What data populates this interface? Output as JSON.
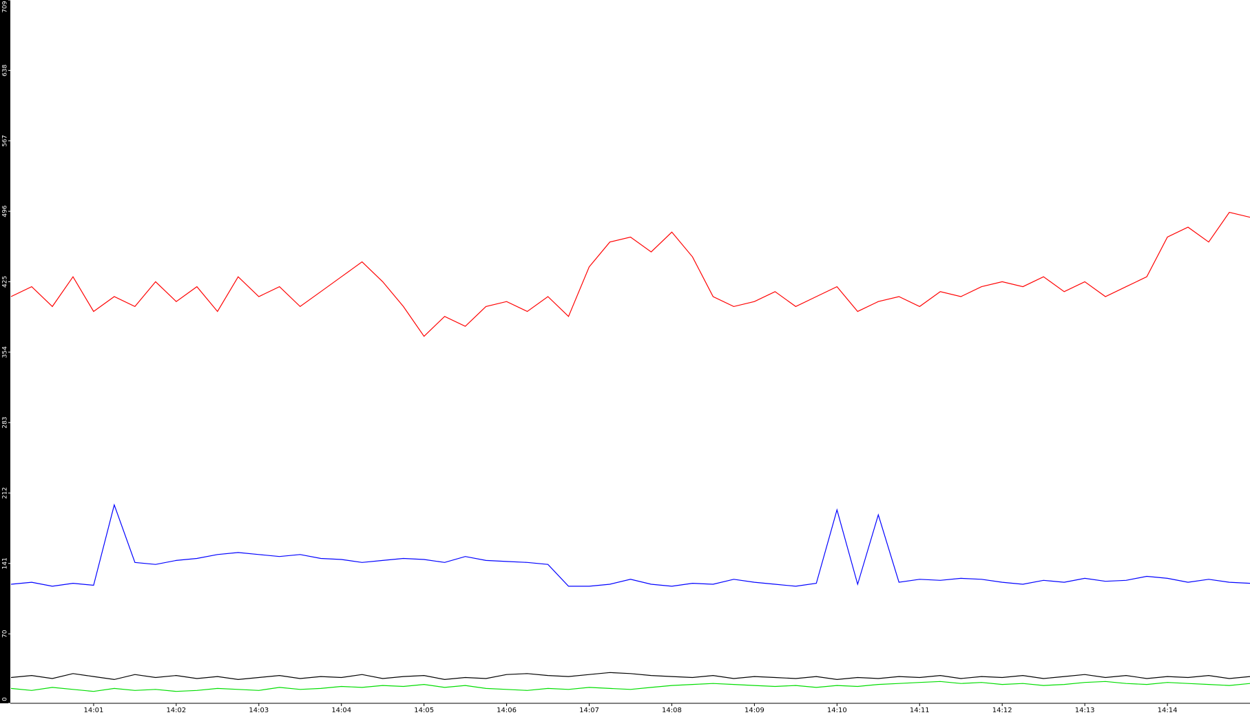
{
  "chart_data": {
    "type": "line",
    "categories": [
      null,
      null,
      null,
      null,
      "14:01",
      null,
      null,
      null,
      "14:02",
      null,
      null,
      null,
      "14:03",
      null,
      null,
      null,
      "14:04",
      null,
      null,
      null,
      "14:05",
      null,
      null,
      null,
      "14:06",
      null,
      null,
      null,
      "14:07",
      null,
      null,
      null,
      "14:08",
      null,
      null,
      null,
      "14:09",
      null,
      null,
      null,
      "14:10",
      null,
      null,
      null,
      "14:11",
      null,
      null,
      null,
      "14:12",
      null,
      null,
      null,
      "14:13",
      null,
      null,
      null,
      "14:14",
      null,
      null,
      null,
      null
    ],
    "ylim": [
      0,
      709
    ],
    "yticks": [
      0,
      70,
      141,
      212,
      283,
      354,
      425,
      496,
      567,
      638,
      709
    ],
    "series": [
      {
        "color": "#ff0000",
        "values": [
          410,
          420,
          400,
          430,
          395,
          410,
          400,
          425,
          405,
          420,
          395,
          430,
          410,
          420,
          400,
          415,
          430,
          445,
          425,
          400,
          370,
          390,
          380,
          400,
          405,
          395,
          410,
          390,
          440,
          465,
          470,
          455,
          475,
          450,
          410,
          400,
          405,
          415,
          400,
          410,
          420,
          395,
          405,
          410,
          400,
          415,
          410,
          420,
          425,
          420,
          430,
          415,
          425,
          410,
          420,
          430,
          470,
          480,
          465,
          495,
          490
        ]
      },
      {
        "color": "#0000ff",
        "values": [
          120,
          122,
          118,
          121,
          119,
          200,
          142,
          140,
          144,
          146,
          150,
          152,
          150,
          148,
          150,
          146,
          145,
          142,
          144,
          146,
          145,
          142,
          148,
          144,
          143,
          142,
          140,
          118,
          118,
          120,
          125,
          120,
          118,
          121,
          120,
          125,
          122,
          120,
          118,
          121,
          195,
          120,
          190,
          122,
          125,
          124,
          126,
          125,
          122,
          120,
          124,
          122,
          126,
          123,
          124,
          128,
          126,
          122,
          125,
          122,
          121
        ]
      },
      {
        "color": "#000000",
        "values": [
          26,
          28,
          25,
          30,
          27,
          24,
          29,
          26,
          28,
          25,
          27,
          24,
          26,
          28,
          25,
          27,
          26,
          29,
          25,
          27,
          28,
          24,
          26,
          25,
          29,
          30,
          28,
          27,
          29,
          31,
          30,
          28,
          27,
          26,
          28,
          25,
          27,
          26,
          25,
          27,
          24,
          26,
          25,
          27,
          26,
          28,
          25,
          27,
          26,
          28,
          25,
          27,
          29,
          26,
          28,
          25,
          27,
          26,
          28,
          25,
          27
        ]
      },
      {
        "color": "#00dd00",
        "values": [
          15,
          13,
          16,
          14,
          12,
          15,
          13,
          14,
          12,
          13,
          15,
          14,
          13,
          16,
          14,
          15,
          17,
          16,
          18,
          17,
          19,
          16,
          18,
          15,
          14,
          13,
          15,
          14,
          16,
          15,
          14,
          16,
          18,
          19,
          20,
          19,
          18,
          17,
          18,
          16,
          18,
          17,
          19,
          20,
          21,
          22,
          20,
          21,
          19,
          20,
          18,
          19,
          21,
          22,
          20,
          19,
          21,
          20,
          19,
          18,
          20
        ]
      }
    ]
  }
}
